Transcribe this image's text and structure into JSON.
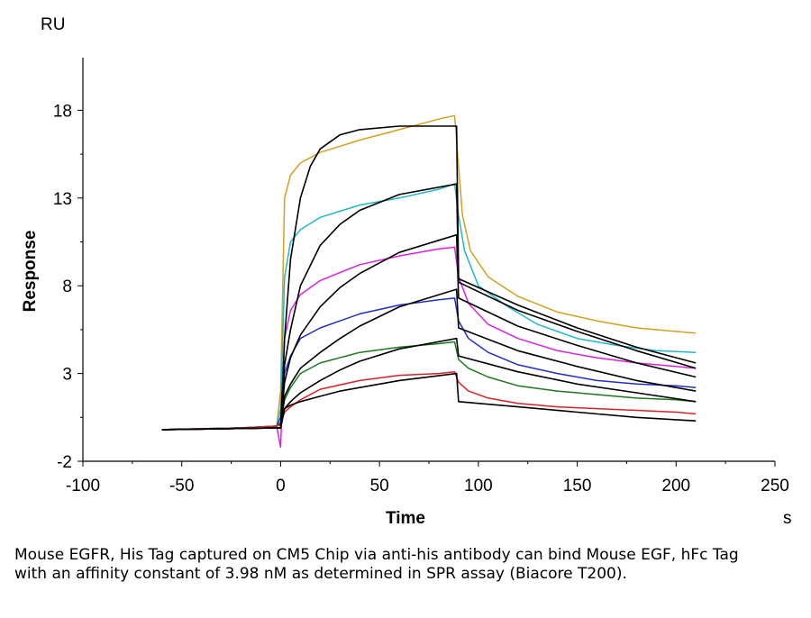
{
  "chart_data": {
    "type": "line",
    "y_unit": "RU",
    "x_unit": "s",
    "xlabel": "Time",
    "ylabel": "Response",
    "xlim": [
      -100,
      250
    ],
    "ylim": [
      -2,
      21
    ],
    "x_ticks": [
      -100,
      -50,
      0,
      50,
      100,
      150,
      200,
      250
    ],
    "y_ticks": [
      -2,
      3,
      8,
      13,
      18
    ],
    "grid": false,
    "series": [
      {
        "color": "#d4a020",
        "points": [
          [
            -60,
            -0.2
          ],
          [
            -20,
            -0.1
          ],
          [
            -2,
            0.0
          ],
          [
            0,
            2.0
          ],
          [
            2,
            13.0
          ],
          [
            5,
            14.3
          ],
          [
            10,
            15.0
          ],
          [
            20,
            15.6
          ],
          [
            40,
            16.3
          ],
          [
            60,
            16.9
          ],
          [
            80,
            17.5
          ],
          [
            88,
            17.7
          ],
          [
            90,
            14.8
          ],
          [
            92,
            12.0
          ],
          [
            96,
            10.0
          ],
          [
            105,
            8.5
          ],
          [
            120,
            7.4
          ],
          [
            140,
            6.5
          ],
          [
            160,
            6.0
          ],
          [
            180,
            5.6
          ],
          [
            200,
            5.4
          ],
          [
            210,
            5.3
          ]
        ]
      },
      {
        "color": "#20b8c8",
        "points": [
          [
            -60,
            -0.2
          ],
          [
            -20,
            -0.1
          ],
          [
            -2,
            0.0
          ],
          [
            0,
            1.0
          ],
          [
            2,
            8.5
          ],
          [
            5,
            10.5
          ],
          [
            10,
            11.2
          ],
          [
            20,
            11.9
          ],
          [
            40,
            12.6
          ],
          [
            60,
            13.0
          ],
          [
            80,
            13.5
          ],
          [
            88,
            13.8
          ],
          [
            90,
            12.0
          ],
          [
            93,
            10.0
          ],
          [
            100,
            8.0
          ],
          [
            115,
            6.8
          ],
          [
            130,
            5.8
          ],
          [
            150,
            5.0
          ],
          [
            170,
            4.6
          ],
          [
            190,
            4.3
          ],
          [
            210,
            4.2
          ]
        ]
      },
      {
        "color": "#dd22dd",
        "points": [
          [
            -60,
            -0.2
          ],
          [
            -20,
            -0.1
          ],
          [
            -2,
            0.0
          ],
          [
            0,
            -1.2
          ],
          [
            2,
            5.0
          ],
          [
            5,
            6.6
          ],
          [
            10,
            7.5
          ],
          [
            20,
            8.3
          ],
          [
            40,
            9.2
          ],
          [
            60,
            9.7
          ],
          [
            80,
            10.1
          ],
          [
            88,
            10.2
          ],
          [
            90,
            8.5
          ],
          [
            95,
            7.0
          ],
          [
            105,
            5.8
          ],
          [
            120,
            5.0
          ],
          [
            140,
            4.3
          ],
          [
            160,
            3.9
          ],
          [
            180,
            3.6
          ],
          [
            200,
            3.4
          ],
          [
            210,
            3.3
          ]
        ]
      },
      {
        "color": "#1f2fc8",
        "points": [
          [
            -60,
            -0.2
          ],
          [
            -20,
            -0.1
          ],
          [
            -2,
            0.0
          ],
          [
            0,
            0.5
          ],
          [
            2,
            3.0
          ],
          [
            5,
            4.0
          ],
          [
            10,
            5.0
          ],
          [
            20,
            5.6
          ],
          [
            40,
            6.4
          ],
          [
            60,
            6.9
          ],
          [
            80,
            7.2
          ],
          [
            88,
            7.3
          ],
          [
            90,
            6.0
          ],
          [
            95,
            5.0
          ],
          [
            105,
            4.2
          ],
          [
            120,
            3.5
          ],
          [
            140,
            3.0
          ],
          [
            160,
            2.6
          ],
          [
            180,
            2.4
          ],
          [
            200,
            2.3
          ],
          [
            210,
            2.2
          ]
        ]
      },
      {
        "color": "#1a7a1a",
        "points": [
          [
            -60,
            -0.2
          ],
          [
            -20,
            -0.1
          ],
          [
            -2,
            0.0
          ],
          [
            0,
            0.2
          ],
          [
            2,
            1.5
          ],
          [
            5,
            2.2
          ],
          [
            10,
            3.0
          ],
          [
            20,
            3.6
          ],
          [
            40,
            4.2
          ],
          [
            60,
            4.5
          ],
          [
            80,
            4.7
          ],
          [
            88,
            4.8
          ],
          [
            90,
            3.8
          ],
          [
            95,
            3.3
          ],
          [
            105,
            2.8
          ],
          [
            120,
            2.3
          ],
          [
            140,
            2.0
          ],
          [
            160,
            1.8
          ],
          [
            180,
            1.6
          ],
          [
            200,
            1.5
          ],
          [
            210,
            1.4
          ]
        ]
      },
      {
        "color": "#dd2222",
        "points": [
          [
            -60,
            -0.2
          ],
          [
            -20,
            -0.1
          ],
          [
            -2,
            0.0
          ],
          [
            0,
            0.1
          ],
          [
            2,
            0.8
          ],
          [
            5,
            1.1
          ],
          [
            10,
            1.5
          ],
          [
            20,
            2.1
          ],
          [
            40,
            2.6
          ],
          [
            60,
            2.9
          ],
          [
            80,
            3.0
          ],
          [
            88,
            3.1
          ],
          [
            90,
            2.5
          ],
          [
            95,
            2.0
          ],
          [
            105,
            1.6
          ],
          [
            120,
            1.3
          ],
          [
            140,
            1.1
          ],
          [
            160,
            1.0
          ],
          [
            180,
            0.9
          ],
          [
            200,
            0.8
          ],
          [
            210,
            0.7
          ]
        ]
      },
      {
        "color": "#000000",
        "points": [
          [
            -60,
            -0.2
          ],
          [
            -1,
            -0.1
          ],
          [
            0,
            -0.1
          ],
          [
            2,
            5.0
          ],
          [
            5,
            9.5
          ],
          [
            10,
            13.0
          ],
          [
            15,
            14.8
          ],
          [
            20,
            15.8
          ],
          [
            30,
            16.6
          ],
          [
            40,
            16.9
          ],
          [
            60,
            17.1
          ],
          [
            89,
            17.1
          ],
          [
            90,
            8.4
          ],
          [
            120,
            6.9
          ],
          [
            150,
            5.6
          ],
          [
            180,
            4.5
          ],
          [
            210,
            3.6
          ]
        ]
      },
      {
        "color": "#000000",
        "points": [
          [
            -60,
            -0.2
          ],
          [
            -1,
            -0.1
          ],
          [
            0,
            -0.1
          ],
          [
            2,
            3.5
          ],
          [
            5,
            5.5
          ],
          [
            10,
            8.0
          ],
          [
            20,
            10.3
          ],
          [
            30,
            11.5
          ],
          [
            40,
            12.3
          ],
          [
            60,
            13.2
          ],
          [
            89,
            13.8
          ],
          [
            90,
            8.2
          ],
          [
            120,
            6.6
          ],
          [
            150,
            5.4
          ],
          [
            180,
            4.3
          ],
          [
            210,
            3.3
          ]
        ]
      },
      {
        "color": "#000000",
        "points": [
          [
            -60,
            -0.2
          ],
          [
            -1,
            -0.1
          ],
          [
            0,
            -0.1
          ],
          [
            2,
            2.5
          ],
          [
            5,
            3.9
          ],
          [
            10,
            5.2
          ],
          [
            20,
            6.8
          ],
          [
            30,
            7.9
          ],
          [
            40,
            8.7
          ],
          [
            60,
            9.9
          ],
          [
            89,
            10.9
          ],
          [
            90,
            7.3
          ],
          [
            120,
            5.7
          ],
          [
            150,
            4.6
          ],
          [
            180,
            3.6
          ],
          [
            210,
            2.8
          ]
        ]
      },
      {
        "color": "#000000",
        "points": [
          [
            -60,
            -0.2
          ],
          [
            -1,
            -0.1
          ],
          [
            0,
            -0.1
          ],
          [
            2,
            1.7
          ],
          [
            5,
            2.4
          ],
          [
            10,
            3.3
          ],
          [
            20,
            4.2
          ],
          [
            30,
            5.0
          ],
          [
            40,
            5.7
          ],
          [
            60,
            6.8
          ],
          [
            89,
            7.8
          ],
          [
            90,
            5.6
          ],
          [
            120,
            4.3
          ],
          [
            150,
            3.4
          ],
          [
            180,
            2.6
          ],
          [
            210,
            2.0
          ]
        ]
      },
      {
        "color": "#000000",
        "points": [
          [
            -60,
            -0.2
          ],
          [
            -1,
            -0.1
          ],
          [
            0,
            -0.1
          ],
          [
            2,
            1.0
          ],
          [
            5,
            1.4
          ],
          [
            10,
            1.9
          ],
          [
            20,
            2.6
          ],
          [
            30,
            3.2
          ],
          [
            40,
            3.7
          ],
          [
            60,
            4.4
          ],
          [
            89,
            5.0
          ],
          [
            90,
            4.0
          ],
          [
            120,
            3.1
          ],
          [
            150,
            2.4
          ],
          [
            180,
            1.9
          ],
          [
            210,
            1.4
          ]
        ]
      },
      {
        "color": "#000000",
        "points": [
          [
            -60,
            -0.2
          ],
          [
            -1,
            -0.1
          ],
          [
            0,
            -0.1
          ],
          [
            2,
            1.0
          ],
          [
            5,
            1.2
          ],
          [
            10,
            1.4
          ],
          [
            20,
            1.7
          ],
          [
            30,
            2.0
          ],
          [
            40,
            2.2
          ],
          [
            60,
            2.6
          ],
          [
            89,
            3.0
          ],
          [
            90,
            1.4
          ],
          [
            120,
            1.1
          ],
          [
            150,
            0.8
          ],
          [
            180,
            0.5
          ],
          [
            210,
            0.3
          ]
        ]
      }
    ]
  },
  "caption": "Mouse EGFR, His Tag captured on CM5 Chip via anti-his antibody can bind Mouse EGF, hFc Tag with an affinity constant of 3.98 nM as determined in SPR assay (Biacore T200)."
}
